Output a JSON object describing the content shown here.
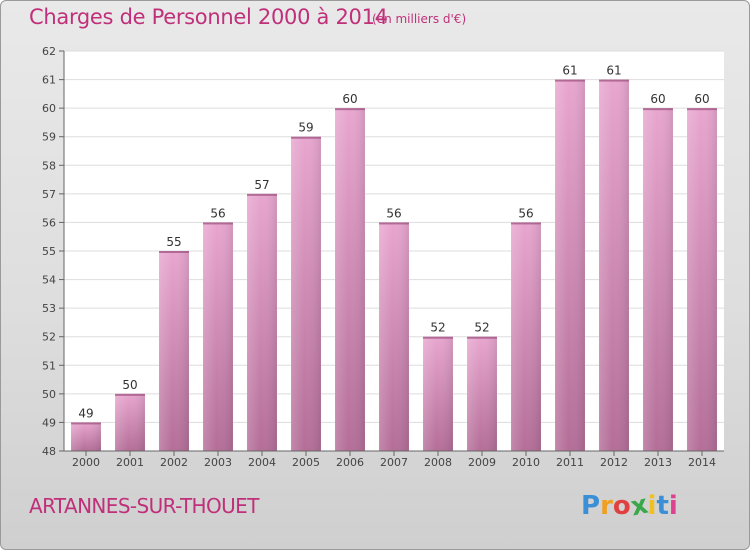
{
  "title": "Charges de Personnel 2000 à 2014",
  "subtitle": "(en milliers d'€)",
  "commune": "ARTANNES-SUR-THOUET",
  "logo": {
    "letters": [
      "P",
      "r",
      "o",
      "x",
      "i",
      "t",
      "i"
    ],
    "colors": [
      "#3a8fd6",
      "#f0a020",
      "#e04040",
      "#3aa84a",
      "#f0c020",
      "#3a8fd6",
      "#e04090"
    ]
  },
  "colors": {
    "accent": "#c0307a",
    "bar_top": "#e8a6cf",
    "bar_bottom": "#b46e98",
    "plot_bg": "#ffffff",
    "grid": "#dddddd"
  },
  "chart_data": {
    "type": "bar",
    "categories": [
      "2000",
      "2001",
      "2002",
      "2003",
      "2004",
      "2005",
      "2006",
      "2007",
      "2008",
      "2009",
      "2010",
      "2011",
      "2012",
      "2013",
      "2014"
    ],
    "values": [
      49,
      50,
      55,
      56,
      57,
      59,
      60,
      56,
      52,
      52,
      56,
      61,
      61,
      60,
      60
    ],
    "data_labels": [
      "49",
      "50",
      "55",
      "56",
      "57",
      "59",
      "60",
      "56",
      "52",
      "52",
      "56",
      "61",
      "61",
      "60",
      "60"
    ],
    "yticks": [
      "48",
      "49",
      "50",
      "51",
      "52",
      "53",
      "54",
      "55",
      "56",
      "57",
      "58",
      "59",
      "60",
      "61",
      "62"
    ],
    "ylim": [
      48,
      62
    ],
    "grid": true,
    "xlabel": "",
    "ylabel": ""
  }
}
